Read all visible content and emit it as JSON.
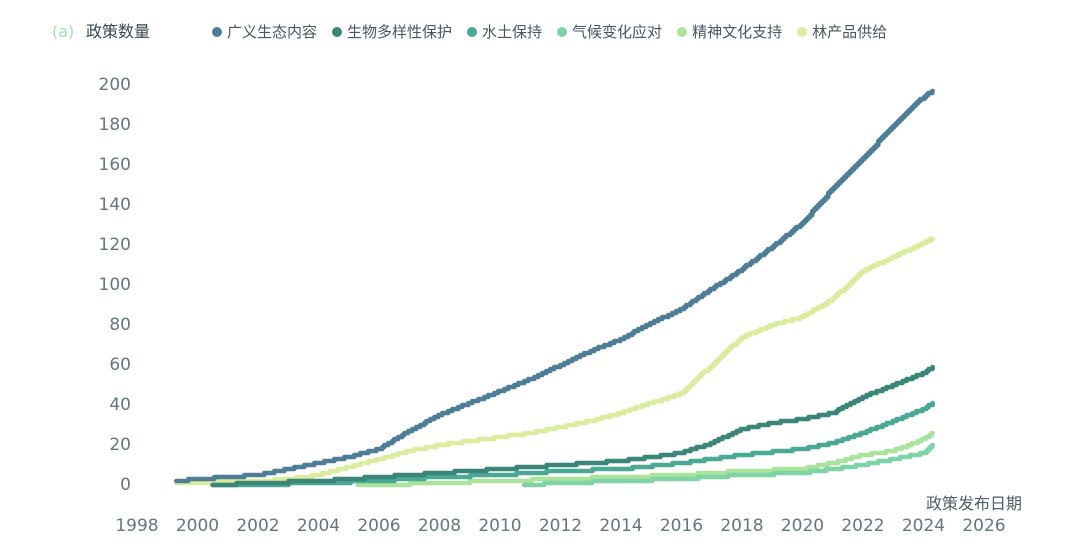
{
  "figure": {
    "panel_label": "(a)",
    "y_axis_title": "政策数量",
    "x_axis_title": "政策发布日期"
  },
  "chart_data": {
    "type": "line",
    "title": "(a) 政策数量",
    "xlabel": "政策发布日期",
    "ylabel": "政策数量",
    "line_style": "cumulative-step",
    "grid": false,
    "legend_position": "top",
    "xlim": [
      1997.5,
      2026.8
    ],
    "ylim": [
      0,
      200
    ],
    "x_ticks": [
      1998,
      2000,
      2002,
      2004,
      2006,
      2008,
      2010,
      2012,
      2014,
      2016,
      2018,
      2020,
      2022,
      2024,
      2026
    ],
    "y_ticks": [
      0,
      20,
      40,
      60,
      80,
      100,
      120,
      140,
      160,
      180,
      200
    ],
    "series": [
      {
        "name": "广义生态内容",
        "color": "#4d7e96",
        "points": [
          [
            1999.3,
            2
          ],
          [
            2000,
            3
          ],
          [
            2001,
            4
          ],
          [
            2002,
            5
          ],
          [
            2003,
            8
          ],
          [
            2004,
            11
          ],
          [
            2005,
            14
          ],
          [
            2006,
            18
          ],
          [
            2007,
            27
          ],
          [
            2008,
            35
          ],
          [
            2009,
            41
          ],
          [
            2010,
            47
          ],
          [
            2011,
            53
          ],
          [
            2012,
            60
          ],
          [
            2013,
            67
          ],
          [
            2014,
            73
          ],
          [
            2015,
            81
          ],
          [
            2016,
            88
          ],
          [
            2017,
            98
          ],
          [
            2018,
            108
          ],
          [
            2019,
            119
          ],
          [
            2020,
            131
          ],
          [
            2021,
            148
          ],
          [
            2022,
            163
          ],
          [
            2023,
            180
          ],
          [
            2024,
            194
          ],
          [
            2024.3,
            197
          ]
        ]
      },
      {
        "name": "生物多样性保护",
        "color": "#3b8679",
        "points": [
          [
            2000.5,
            0
          ],
          [
            2002,
            1
          ],
          [
            2004,
            2
          ],
          [
            2006,
            4
          ],
          [
            2008,
            6
          ],
          [
            2010,
            8
          ],
          [
            2012,
            10
          ],
          [
            2014,
            12
          ],
          [
            2016,
            16
          ],
          [
            2017,
            21
          ],
          [
            2018,
            28
          ],
          [
            2019,
            31
          ],
          [
            2020,
            33
          ],
          [
            2021,
            36
          ],
          [
            2022,
            44
          ],
          [
            2023,
            50
          ],
          [
            2024,
            56
          ],
          [
            2024.3,
            59
          ]
        ]
      },
      {
        "name": "水土保持",
        "color": "#4aa995",
        "points": [
          [
            2000.5,
            0
          ],
          [
            2002,
            0
          ],
          [
            2004,
            1
          ],
          [
            2006,
            2
          ],
          [
            2008,
            4
          ],
          [
            2010,
            5
          ],
          [
            2012,
            7
          ],
          [
            2014,
            8
          ],
          [
            2016,
            11
          ],
          [
            2018,
            15
          ],
          [
            2020,
            18
          ],
          [
            2021,
            21
          ],
          [
            2022,
            26
          ],
          [
            2023,
            32
          ],
          [
            2024,
            38
          ],
          [
            2024.3,
            41
          ]
        ]
      },
      {
        "name": "气候变化应对",
        "color": "#7ed4a6",
        "points": [
          [
            2010.8,
            0
          ],
          [
            2012,
            1
          ],
          [
            2014,
            2
          ],
          [
            2016,
            3
          ],
          [
            2018,
            5
          ],
          [
            2020,
            6
          ],
          [
            2021,
            8
          ],
          [
            2022,
            10
          ],
          [
            2023,
            13
          ],
          [
            2024,
            16
          ],
          [
            2024.3,
            20
          ]
        ]
      },
      {
        "name": "精神文化支持",
        "color": "#aae39c",
        "points": [
          [
            2005.3,
            0
          ],
          [
            2006,
            0
          ],
          [
            2008,
            1
          ],
          [
            2010,
            2
          ],
          [
            2012,
            3
          ],
          [
            2014,
            4
          ],
          [
            2016,
            5
          ],
          [
            2018,
            7
          ],
          [
            2020,
            8
          ],
          [
            2021,
            11
          ],
          [
            2022,
            15
          ],
          [
            2023,
            17
          ],
          [
            2024,
            23
          ],
          [
            2024.3,
            26
          ]
        ]
      },
      {
        "name": "林产品供给",
        "color": "#dcec9e",
        "points": [
          [
            1999.3,
            1
          ],
          [
            2000,
            1
          ],
          [
            2001,
            2
          ],
          [
            2002,
            2
          ],
          [
            2003,
            3
          ],
          [
            2004,
            5
          ],
          [
            2005,
            9
          ],
          [
            2006,
            13
          ],
          [
            2007,
            17
          ],
          [
            2008,
            20
          ],
          [
            2009,
            22
          ],
          [
            2010,
            24
          ],
          [
            2011,
            26
          ],
          [
            2012,
            29
          ],
          [
            2013,
            32
          ],
          [
            2014,
            36
          ],
          [
            2015,
            41
          ],
          [
            2016,
            46
          ],
          [
            2017,
            60
          ],
          [
            2018,
            74
          ],
          [
            2019,
            80
          ],
          [
            2020,
            84
          ],
          [
            2021,
            93
          ],
          [
            2022,
            107
          ],
          [
            2023,
            114
          ],
          [
            2024,
            121
          ],
          [
            2024.3,
            123
          ]
        ]
      }
    ]
  }
}
